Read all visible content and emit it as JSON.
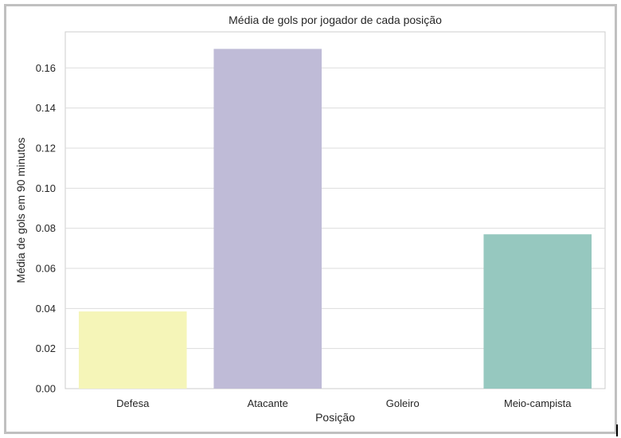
{
  "chart_data": {
    "type": "bar",
    "title": "Média de gols por jogador de cada posição",
    "xlabel": "Posição",
    "ylabel": "Média de gols em 90 minutos",
    "categories": [
      "Defesa",
      "Atacante",
      "Goleiro",
      "Meio-campista"
    ],
    "values": [
      0.0385,
      0.1695,
      0.0,
      0.077
    ],
    "ylim": [
      0,
      0.178
    ],
    "yticks": [
      0.0,
      0.02,
      0.04,
      0.06,
      0.08,
      0.1,
      0.12,
      0.14,
      0.16
    ],
    "ytick_labels": [
      "0.00",
      "0.02",
      "0.04",
      "0.06",
      "0.08",
      "0.10",
      "0.12",
      "0.14",
      "0.16"
    ],
    "colors": [
      "#f5f5b8",
      "#bfbbd7",
      "#8fd1c3",
      "#96c8bf"
    ],
    "grid": "horizontal",
    "legend": "none"
  }
}
